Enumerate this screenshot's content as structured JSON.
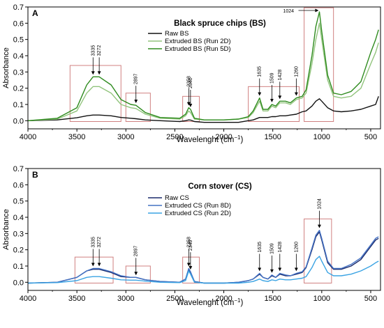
{
  "figure": {
    "x_tick_labels": [
      "4000",
      "3500",
      "3000",
      "2500",
      "2000",
      "1500",
      "1000",
      "500"
    ],
    "y_tick_labels": [
      "0.0",
      "0.1",
      "0.2",
      "0.3",
      "0.4",
      "0.5",
      "0.6",
      "0.7"
    ]
  },
  "chart_data": [
    {
      "type": "line",
      "panel_label": "A",
      "title": "Black spruce chips (BS)",
      "xlabel": "Wavelenght (cm",
      "xlabel_sup": "−1",
      "xlabel_end": ")",
      "ylabel": "Absorbance",
      "xlim": [
        4000,
        400
      ],
      "ylim": [
        -0.05,
        0.7
      ],
      "x_reversed": true,
      "legend_position": "top-center",
      "x": [
        4000,
        3700,
        3500,
        3400,
        3335,
        3272,
        3150,
        3050,
        2950,
        2897,
        2800,
        2650,
        2450,
        2390,
        2358,
        2340,
        2300,
        2200,
        2000,
        1850,
        1750,
        1700,
        1635,
        1600,
        1550,
        1509,
        1470,
        1428,
        1370,
        1320,
        1260,
        1200,
        1160,
        1100,
        1060,
        1024,
        1000,
        940,
        880,
        800,
        700,
        600,
        500,
        450,
        420
      ],
      "series": [
        {
          "name": "Raw BS",
          "color": "#111111",
          "values": [
            0.0,
            0.005,
            0.018,
            0.03,
            0.035,
            0.035,
            0.03,
            0.02,
            0.015,
            0.012,
            0.005,
            0.0,
            -0.005,
            0.0,
            0.005,
            0.004,
            -0.005,
            -0.01,
            -0.01,
            -0.01,
            0.0,
            0.005,
            0.02,
            0.02,
            0.02,
            0.025,
            0.025,
            0.03,
            0.03,
            0.035,
            0.04,
            0.055,
            0.06,
            0.09,
            0.12,
            0.135,
            0.12,
            0.08,
            0.06,
            0.055,
            0.06,
            0.07,
            0.09,
            0.1,
            0.15
          ]
        },
        {
          "name": "Extruded BS (Run 2D)",
          "color": "#92c47d",
          "values": [
            0.0,
            0.01,
            0.06,
            0.17,
            0.21,
            0.21,
            0.17,
            0.1,
            0.08,
            0.075,
            0.04,
            0.015,
            0.01,
            0.03,
            0.06,
            0.05,
            0.01,
            0.005,
            0.005,
            0.01,
            0.02,
            0.05,
            0.12,
            0.06,
            0.06,
            0.09,
            0.08,
            0.11,
            0.11,
            0.1,
            0.13,
            0.14,
            0.17,
            0.35,
            0.5,
            0.6,
            0.5,
            0.25,
            0.15,
            0.14,
            0.15,
            0.2,
            0.35,
            0.42,
            0.48
          ]
        },
        {
          "name": "Extruded BS (Run 5D)",
          "color": "#2e8b1e",
          "values": [
            0.0,
            0.015,
            0.08,
            0.22,
            0.27,
            0.27,
            0.22,
            0.13,
            0.1,
            0.095,
            0.05,
            0.02,
            0.015,
            0.04,
            0.08,
            0.07,
            0.015,
            0.005,
            0.005,
            0.01,
            0.025,
            0.06,
            0.14,
            0.07,
            0.07,
            0.1,
            0.09,
            0.12,
            0.12,
            0.11,
            0.14,
            0.15,
            0.19,
            0.4,
            0.58,
            0.67,
            0.55,
            0.28,
            0.17,
            0.16,
            0.18,
            0.24,
            0.42,
            0.5,
            0.56
          ]
        }
      ],
      "peak_labels": [
        {
          "x": 3335,
          "text": "3335"
        },
        {
          "x": 3272,
          "text": "3272"
        },
        {
          "x": 2897,
          "text": "2897"
        },
        {
          "x": 2358,
          "text": "2358"
        },
        {
          "x": 2340,
          "text": "2340"
        },
        {
          "x": 1635,
          "text": "1635"
        },
        {
          "x": 1509,
          "text": "1509"
        },
        {
          "x": 1428,
          "text": "1428"
        },
        {
          "x": 1260,
          "text": "1260"
        }
      ],
      "peak_label_top": {
        "x": 1024,
        "text": "1024"
      },
      "highlight_ranges": [
        [
          3570,
          3050
        ],
        [
          3000,
          2750
        ],
        [
          2420,
          2250
        ],
        [
          1750,
          1230
        ],
        [
          1180,
          880
        ]
      ]
    },
    {
      "type": "line",
      "panel_label": "B",
      "title": "Corn stover (CS)",
      "xlabel": "Wavelenght (cm",
      "xlabel_sup": "−1",
      "xlabel_end": ")",
      "ylabel": "Absorbance",
      "xlim": [
        4000,
        400
      ],
      "ylim": [
        -0.05,
        0.7
      ],
      "x_reversed": true,
      "legend_position": "top-center",
      "x": [
        4000,
        3700,
        3500,
        3400,
        3335,
        3272,
        3150,
        3050,
        2950,
        2897,
        2800,
        2650,
        2450,
        2390,
        2358,
        2340,
        2300,
        2200,
        2000,
        1850,
        1750,
        1700,
        1635,
        1600,
        1550,
        1509,
        1470,
        1428,
        1370,
        1320,
        1260,
        1200,
        1160,
        1100,
        1060,
        1024,
        1000,
        940,
        880,
        800,
        700,
        600,
        500,
        450,
        420
      ],
      "series": [
        {
          "name": "Raw CS",
          "color": "#1a2a6c",
          "values": [
            -0.005,
            0.0,
            0.03,
            0.07,
            0.08,
            0.08,
            0.06,
            0.035,
            0.03,
            0.03,
            0.015,
            0.005,
            0.0,
            0.02,
            0.08,
            0.06,
            0.005,
            -0.005,
            -0.005,
            0.0,
            0.01,
            0.02,
            0.05,
            0.03,
            0.02,
            0.04,
            0.03,
            0.05,
            0.04,
            0.04,
            0.05,
            0.06,
            0.09,
            0.2,
            0.28,
            0.31,
            0.26,
            0.12,
            0.08,
            0.08,
            0.1,
            0.14,
            0.22,
            0.26,
            0.27
          ]
        },
        {
          "name": "Extruded CS (Run 8D)",
          "color": "#4472c4",
          "values": [
            -0.005,
            0.0,
            0.03,
            0.07,
            0.085,
            0.085,
            0.065,
            0.04,
            0.03,
            0.03,
            0.015,
            0.005,
            0.0,
            0.02,
            0.085,
            0.065,
            0.005,
            -0.005,
            -0.005,
            0.0,
            0.01,
            0.02,
            0.055,
            0.03,
            0.02,
            0.045,
            0.03,
            0.055,
            0.045,
            0.04,
            0.055,
            0.065,
            0.095,
            0.21,
            0.29,
            0.32,
            0.27,
            0.13,
            0.085,
            0.085,
            0.11,
            0.15,
            0.23,
            0.27,
            0.28
          ]
        },
        {
          "name": "Extruded CS (Run 2D)",
          "color": "#3aa3e3",
          "values": [
            -0.005,
            -0.002,
            0.01,
            0.03,
            0.035,
            0.035,
            0.025,
            0.015,
            0.013,
            0.013,
            0.007,
            0.0,
            -0.002,
            0.01,
            0.07,
            0.05,
            0.0,
            -0.005,
            -0.005,
            -0.005,
            0.0,
            0.005,
            0.02,
            0.01,
            0.005,
            0.015,
            0.01,
            0.02,
            0.015,
            0.015,
            0.02,
            0.025,
            0.035,
            0.09,
            0.14,
            0.16,
            0.13,
            0.06,
            0.04,
            0.04,
            0.05,
            0.07,
            0.1,
            0.12,
            0.13
          ]
        }
      ],
      "peak_labels": [
        {
          "x": 3335,
          "text": "3335"
        },
        {
          "x": 3272,
          "text": "3272"
        },
        {
          "x": 2897,
          "text": "2897"
        },
        {
          "x": 2358,
          "text": "2358"
        },
        {
          "x": 2340,
          "text": "2340"
        },
        {
          "x": 1635,
          "text": "1635"
        },
        {
          "x": 1509,
          "text": "1509"
        },
        {
          "x": 1428,
          "text": "1428"
        },
        {
          "x": 1260,
          "text": "1260"
        },
        {
          "x": 1024,
          "text": "1024"
        }
      ],
      "highlight_ranges": [
        [
          3520,
          3130
        ],
        [
          3000,
          2750
        ],
        [
          2420,
          2250
        ],
        [
          1180,
          900
        ]
      ]
    }
  ]
}
